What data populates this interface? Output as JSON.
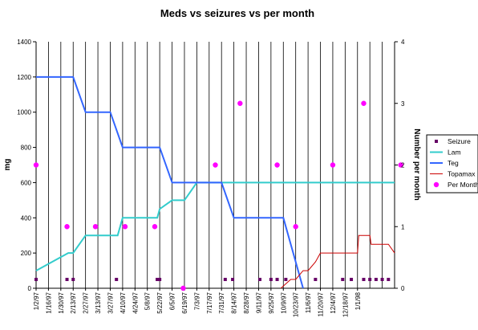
{
  "chart_data": {
    "type": "line",
    "title": "Meds vs seizures vs per month",
    "ylabel": "mg",
    "y2label": "Number per month",
    "ylim": [
      0,
      1400
    ],
    "y2lim": [
      0,
      4
    ],
    "yticks": [
      "0",
      "200",
      "400",
      "600",
      "800",
      "1000",
      "1200",
      "1400"
    ],
    "y2ticks": [
      "0",
      "1",
      "2",
      "3",
      "4"
    ],
    "grid": "vertical",
    "legend_position": "right",
    "categories": [
      "1/2/97",
      "1/16/97",
      "1/30/97",
      "2/13/97",
      "2/27/97",
      "3/13/97",
      "3/27/97",
      "4/10/97",
      "4/24/97",
      "5/8/97",
      "5/22/97",
      "6/5/97",
      "6/19/97",
      "7/3/97",
      "7/17/97",
      "7/31/97",
      "8/14/97",
      "8/28/97",
      "9/11/97",
      "9/25/97",
      "10/9/97",
      "10/23/97",
      "11/6/97",
      "11/20/97",
      "12/4/97",
      "12/18/97",
      "1/1/98"
    ],
    "series": [
      {
        "name": "Seizure",
        "axis": "primary",
        "kind": "marker-square",
        "color": "#660066",
        "x": [
          0,
          2.5,
          3,
          6.5,
          9.8,
          10,
          15.3,
          15.9,
          18.1,
          19,
          19.5,
          20.2,
          22.6,
          24.8,
          25.5,
          26.5,
          27,
          27.5,
          28,
          28.5
        ],
        "y": [
          50,
          50,
          50,
          50,
          50,
          50,
          50,
          50,
          50,
          50,
          50,
          50,
          50,
          50,
          50,
          50,
          50,
          50,
          50,
          50
        ]
      },
      {
        "name": "Lam",
        "axis": "primary",
        "kind": "line",
        "color": "#33CCCC",
        "x": [
          0,
          2.6,
          3,
          4,
          5,
          6.6,
          7,
          8,
          9.8,
          10,
          11,
          12,
          13,
          14,
          15,
          16,
          17,
          18,
          19,
          20,
          21,
          22,
          23,
          24,
          25,
          26,
          27,
          28,
          29
        ],
        "y": [
          100,
          200,
          200,
          300,
          300,
          300,
          400,
          400,
          400,
          450,
          500,
          500,
          600,
          600,
          600,
          600,
          600,
          600,
          600,
          600,
          600,
          600,
          600,
          600,
          600,
          600,
          600,
          600,
          600
        ]
      },
      {
        "name": "Teg",
        "axis": "primary",
        "kind": "line",
        "color": "#3366FF",
        "x": [
          0,
          3,
          4,
          5,
          6,
          7,
          8,
          9,
          10,
          11,
          12,
          13,
          14,
          15,
          16,
          17,
          18,
          19,
          20,
          20.8,
          21.6
        ],
        "y": [
          1200,
          1200,
          1000,
          1000,
          1000,
          800,
          800,
          800,
          800,
          600,
          600,
          600,
          600,
          600,
          400,
          400,
          400,
          400,
          400,
          200,
          0
        ]
      },
      {
        "name": "Topamax",
        "axis": "primary",
        "kind": "line",
        "color": "#CC0000",
        "x": [
          19.8,
          20.6,
          21.0,
          21.6,
          22.0,
          22.6,
          23,
          24,
          25,
          26,
          26.1,
          27,
          27.1,
          28,
          28.5,
          29
        ],
        "y": [
          0,
          50,
          50,
          100,
          100,
          150,
          200,
          200,
          200,
          200,
          300,
          300,
          250,
          250,
          250,
          200
        ]
      },
      {
        "name": "Per Month",
        "axis": "secondary",
        "kind": "marker-circle",
        "color": "#FF00FF",
        "x": [
          0,
          2.5,
          4.8,
          7.2,
          9.6,
          11.9,
          14.5,
          16.5,
          19.5,
          21,
          24,
          26.5,
          29.5
        ],
        "y": [
          2,
          1,
          1,
          1,
          1,
          0,
          2,
          3,
          2,
          1,
          2,
          3,
          2
        ]
      }
    ]
  }
}
